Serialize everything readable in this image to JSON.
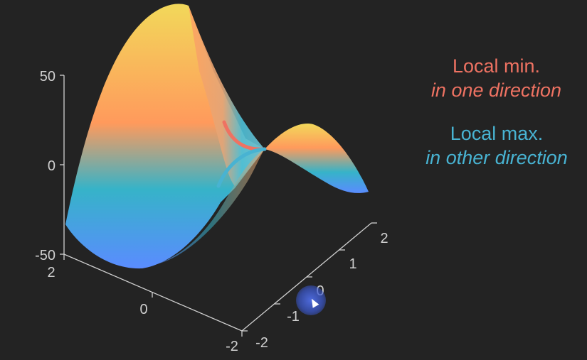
{
  "chart_data": {
    "type": "surface",
    "function": "z = 10*x^2 - 10*y^2 (saddle)",
    "title": "",
    "zlim": [
      -50,
      50
    ],
    "z_ticks": [
      "50",
      "0",
      "-50"
    ],
    "x_ticks": [
      "2",
      "0",
      "-2"
    ],
    "y_ticks": [
      "-2",
      "-1",
      "0",
      "1",
      "2"
    ],
    "grid": false,
    "colormap": [
      "#5a8cff",
      "#36b3c8",
      "#ff9a5c",
      "#f2d85a"
    ]
  },
  "annotations": {
    "min_title": "Local min.",
    "min_subtitle": "in one direction",
    "max_title": "Local max.",
    "max_subtitle": "in other direction",
    "min_color": "#ee7262",
    "max_color": "#48b3d2"
  }
}
